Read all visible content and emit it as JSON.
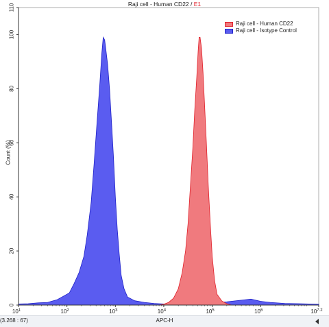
{
  "title": {
    "text": "Raji cell - Human CD22 / ",
    "gate": "E1"
  },
  "status": {
    "coords": "(3.268 : 67)"
  },
  "chart_data": {
    "type": "area",
    "title": "Raji cell - Human CD22 / E1",
    "xlabel": "APC-H",
    "ylabel": "Count (%)",
    "xscale": "log",
    "xlim": [
      1,
      7.2
    ],
    "ylim": [
      0,
      110
    ],
    "x_ticks": [
      {
        "value": 1,
        "label": "10",
        "exp": "1"
      },
      {
        "value": 2,
        "label": "10",
        "exp": "2"
      },
      {
        "value": 3,
        "label": "10",
        "exp": "3"
      },
      {
        "value": 4,
        "label": "10",
        "exp": "4"
      },
      {
        "value": 5,
        "label": "10",
        "exp": "5"
      },
      {
        "value": 6,
        "label": "10",
        "exp": "6"
      },
      {
        "value": 7.2,
        "label": "10",
        "exp": "7.2"
      }
    ],
    "y_ticks": [
      0,
      20,
      40,
      60,
      80,
      100,
      110
    ],
    "grid": false,
    "legend_position": "top-right",
    "series": [
      {
        "name": "Raji cell - Isotype Control",
        "color": "#5a5cf0",
        "edge": "#1f21c8",
        "points": [
          [
            1.0,
            0.4
          ],
          [
            1.2,
            0.5
          ],
          [
            1.4,
            0.8
          ],
          [
            1.6,
            1.0
          ],
          [
            1.8,
            2.0
          ],
          [
            1.95,
            3.5
          ],
          [
            2.05,
            4.5
          ],
          [
            2.15,
            8
          ],
          [
            2.25,
            12
          ],
          [
            2.35,
            18
          ],
          [
            2.42,
            26
          ],
          [
            2.5,
            38
          ],
          [
            2.56,
            52
          ],
          [
            2.62,
            67
          ],
          [
            2.68,
            82
          ],
          [
            2.72,
            93
          ],
          [
            2.75,
            99
          ],
          [
            2.78,
            98
          ],
          [
            2.8,
            95
          ],
          [
            2.84,
            89
          ],
          [
            2.88,
            80
          ],
          [
            2.92,
            68
          ],
          [
            2.96,
            55
          ],
          [
            3.0,
            40
          ],
          [
            3.04,
            28
          ],
          [
            3.08,
            19
          ],
          [
            3.12,
            11
          ],
          [
            3.18,
            6
          ],
          [
            3.25,
            3
          ],
          [
            3.4,
            1.6
          ],
          [
            3.6,
            1.0
          ],
          [
            3.8,
            0.6
          ],
          [
            4.0,
            0.4
          ],
          [
            4.5,
            0.6
          ],
          [
            5.0,
            0.8
          ],
          [
            5.3,
            1.2
          ],
          [
            5.6,
            1.8
          ],
          [
            5.8,
            2.2
          ],
          [
            6.0,
            1.4
          ],
          [
            6.2,
            1.0
          ],
          [
            6.5,
            0.6
          ],
          [
            6.8,
            0.5
          ],
          [
            7.0,
            0.4
          ],
          [
            7.2,
            0.3
          ]
        ]
      },
      {
        "name": "Raji cell - Human CD22",
        "color": "#f07a7e",
        "edge": "#e0202a",
        "points": [
          [
            3.9,
            0.0
          ],
          [
            4.0,
            0.3
          ],
          [
            4.1,
            1.0
          ],
          [
            4.2,
            2.5
          ],
          [
            4.3,
            6
          ],
          [
            4.38,
            12
          ],
          [
            4.45,
            20
          ],
          [
            4.5,
            30
          ],
          [
            4.55,
            44
          ],
          [
            4.6,
            58
          ],
          [
            4.64,
            72
          ],
          [
            4.68,
            84
          ],
          [
            4.71,
            94
          ],
          [
            4.73,
            99
          ],
          [
            4.75,
            99
          ],
          [
            4.78,
            95
          ],
          [
            4.81,
            86
          ],
          [
            4.84,
            75
          ],
          [
            4.88,
            60
          ],
          [
            4.92,
            44
          ],
          [
            4.96,
            30
          ],
          [
            5.0,
            18
          ],
          [
            5.05,
            9
          ],
          [
            5.1,
            4
          ],
          [
            5.2,
            1.5
          ],
          [
            5.3,
            0.5
          ],
          [
            5.4,
            0.0
          ]
        ]
      }
    ]
  }
}
